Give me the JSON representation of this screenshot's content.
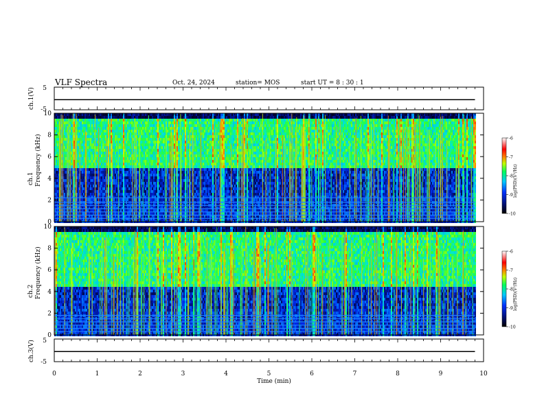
{
  "header": {
    "title": "VLF Spectra",
    "date": "Oct. 24, 2024",
    "station": "station= MOS",
    "start": "start UT =  8 : 30 : 1"
  },
  "colors": {
    "colormap": [
      "#000000",
      "#000a3c",
      "#0020c8",
      "#0088ff",
      "#00e0e0",
      "#20ff20",
      "#ffff00",
      "#ff2000",
      "#ffffff"
    ],
    "trace": "#000000",
    "frame": "#000000"
  },
  "chart_data": [
    {
      "type": "line",
      "panel": "ch1_waveform",
      "ylabel": "ch.1(V)",
      "ylim": [
        -5,
        5
      ],
      "yticks": [
        "5",
        "-5"
      ],
      "x": [
        0,
        9.8
      ],
      "values": [
        -1,
        -1
      ],
      "note_level": -1
    },
    {
      "type": "heatmap",
      "panel": "ch1_spectrogram",
      "ylabel": "ch.1\nFrequency (kHz)",
      "ylim": [
        0,
        10
      ],
      "yticks": [
        "0",
        "2",
        "4",
        "6",
        "8",
        "10"
      ],
      "colorbar": {
        "label": "log(PSD)(V²/Hz)",
        "ticks": [
          "-6",
          "-7",
          "-8",
          "-9",
          "-10"
        ],
        "range": [
          -10,
          -6
        ]
      },
      "hum_lines_khz": [
        0.3,
        0.6,
        0.9,
        1.2,
        1.5,
        1.8,
        2.2
      ],
      "emission_band_khz": [
        5,
        9.5
      ]
    },
    {
      "type": "heatmap",
      "panel": "ch2_spectrogram",
      "ylabel": "ch.2\nFrequency (kHz)",
      "ylim": [
        0,
        10
      ],
      "yticks": [
        "0",
        "2",
        "4",
        "6",
        "8",
        "10"
      ],
      "colorbar": {
        "label": "log(PSD)(V²/Hz)",
        "ticks": [
          "-6",
          "-7",
          "-8",
          "-9",
          "-10"
        ],
        "range": [
          -10,
          -6
        ]
      },
      "hum_lines_khz": [
        0.3,
        0.6,
        0.9,
        1.2,
        1.5,
        1.8
      ],
      "emission_band_khz": [
        4.5,
        9.5
      ]
    },
    {
      "type": "line",
      "panel": "ch3_waveform",
      "ylabel": "ch.3(V)",
      "ylim": [
        -5,
        5
      ],
      "yticks": [
        "5",
        "-5"
      ],
      "x": [
        0,
        9.8
      ],
      "values": [
        -1,
        -1
      ]
    }
  ],
  "xaxis": {
    "label": "Time (min)",
    "range": [
      0,
      10
    ],
    "ticks": [
      "0",
      "1",
      "2",
      "3",
      "4",
      "5",
      "6",
      "7",
      "8",
      "9",
      "10"
    ],
    "data_end": 9.8
  }
}
